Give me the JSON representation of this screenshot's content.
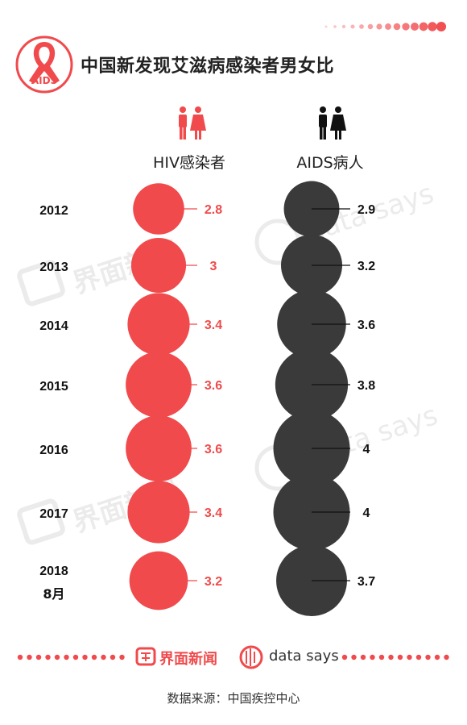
{
  "header": {
    "logo_text": "AIDS",
    "title": "中国新发现艾滋病感染者男女比"
  },
  "colors": {
    "accent": "#f04a4c",
    "dark": "#3a3a3a",
    "dot_light": "#f7c9ca"
  },
  "icons": [
    "male-female-red-icon",
    "male-female-black-icon",
    "aids-ribbon-icon",
    "jiemian-logo-icon",
    "data-says-logo-icon"
  ],
  "chart_data": {
    "type": "bubble",
    "categories": [
      "2012",
      "2013",
      "2014",
      "2015",
      "2016",
      "2017",
      "2018\n8月"
    ],
    "series": [
      {
        "name": "HIV感染者",
        "values": [
          2.8,
          3,
          3.4,
          3.6,
          3.6,
          3.4,
          3.2
        ],
        "value_labels": [
          "2.8",
          "3",
          "3.4",
          "3.6",
          "3.6",
          "3.4",
          "3.2"
        ],
        "color": "#f04a4c"
      },
      {
        "name": "AIDS病人",
        "values": [
          2.9,
          3.2,
          3.6,
          3.8,
          4,
          4,
          3.7
        ],
        "value_labels": [
          "2.9",
          "3.2",
          "3.6",
          "3.8",
          "4",
          "4",
          "3.7"
        ],
        "color": "#3a3a3a"
      }
    ]
  },
  "watermarks": {
    "jiemian": "界面新闻",
    "datasays": "data says"
  },
  "footer": {
    "brand": "界面新闻",
    "datasays": "data says",
    "source": "数据来源：中国疾控中心"
  }
}
